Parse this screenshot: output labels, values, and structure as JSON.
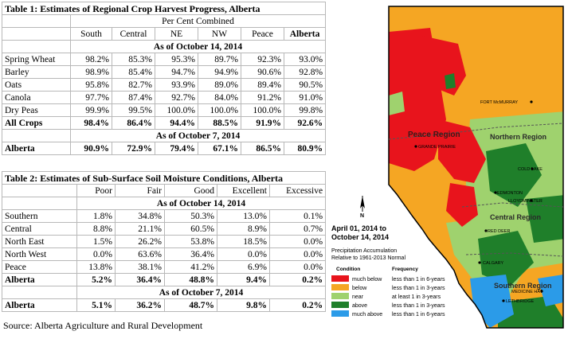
{
  "table1": {
    "title": "Table 1: Estimates of Regional Crop Harvest Progress, Alberta",
    "subtitle": "Per Cent Combined",
    "columns": [
      "South",
      "Central",
      "NE",
      "NW",
      "Peace",
      "Alberta"
    ],
    "section1": "As of October 14, 2014",
    "rows": [
      {
        "label": "Spring Wheat",
        "values": [
          "98.2%",
          "85.3%",
          "95.3%",
          "89.7%",
          "92.3%",
          "93.0%"
        ]
      },
      {
        "label": "Barley",
        "values": [
          "98.9%",
          "85.4%",
          "94.7%",
          "94.9%",
          "90.6%",
          "92.8%"
        ]
      },
      {
        "label": "Oats",
        "values": [
          "95.8%",
          "82.7%",
          "93.9%",
          "89.0%",
          "89.4%",
          "90.5%"
        ]
      },
      {
        "label": "Canola",
        "values": [
          "97.7%",
          "87.4%",
          "92.7%",
          "84.0%",
          "91.2%",
          "91.0%"
        ]
      },
      {
        "label": "Dry Peas",
        "values": [
          "99.9%",
          "99.5%",
          "100.0%",
          "100.0%",
          "100.0%",
          "99.8%"
        ]
      }
    ],
    "total": {
      "label": "All Crops",
      "values": [
        "98.4%",
        "86.4%",
        "94.4%",
        "88.5%",
        "91.9%",
        "92.6%"
      ]
    },
    "section2": "As of October 7, 2014",
    "prev": {
      "label": "Alberta",
      "values": [
        "90.9%",
        "72.9%",
        "79.4%",
        "67.1%",
        "86.5%",
        "80.9%"
      ]
    }
  },
  "table2": {
    "title": "Table 2: Estimates of Sub-Surface Soil Moisture Conditions, Alberta",
    "columns": [
      "Poor",
      "Fair",
      "Good",
      "Excellent",
      "Excessive"
    ],
    "section1": "As of October 14, 2014",
    "rows": [
      {
        "label": "Southern",
        "values": [
          "1.8%",
          "34.8%",
          "50.3%",
          "13.0%",
          "0.1%"
        ]
      },
      {
        "label": "Central",
        "values": [
          "8.8%",
          "21.1%",
          "60.5%",
          "8.9%",
          "0.7%"
        ]
      },
      {
        "label": "North East",
        "values": [
          "1.5%",
          "26.2%",
          "53.8%",
          "18.5%",
          "0.0%"
        ]
      },
      {
        "label": "North West",
        "values": [
          "0.0%",
          "63.6%",
          "36.4%",
          "0.0%",
          "0.0%"
        ]
      },
      {
        "label": "Peace",
        "values": [
          "13.8%",
          "38.1%",
          "41.2%",
          "6.9%",
          "0.0%"
        ]
      }
    ],
    "total": {
      "label": "Alberta",
      "values": [
        "5.2%",
        "36.4%",
        "48.8%",
        "9.4%",
        "0.2%"
      ]
    },
    "section2": "As of October 7, 2014",
    "prev": {
      "label": "Alberta",
      "values": [
        "5.1%",
        "36.2%",
        "48.7%",
        "9.8%",
        "0.2%"
      ]
    }
  },
  "source": "Source: Alberta Agriculture and Rural Development",
  "map": {
    "date_line1": "April 01, 2014 to",
    "date_line2": "October 14, 2014",
    "desc_line1": "Precipitation Accumulation",
    "desc_line2": "Relative to 1961-2013 Normal",
    "legend_header_condition": "Condition",
    "legend_header_frequency": "Frequency",
    "legend": [
      {
        "condition": "much below",
        "frequency": "less than 1 in 6-years",
        "color": "#e8141c"
      },
      {
        "condition": "below",
        "frequency": "less than 1 in 3-years",
        "color": "#f5a623"
      },
      {
        "condition": "near",
        "frequency": "at least 1 in 3-years",
        "color": "#9fd26e"
      },
      {
        "condition": "above",
        "frequency": "less than 1 in 3-years",
        "color": "#1f7f2a"
      },
      {
        "condition": "much above",
        "frequency": "less than 1 in 6-years",
        "color": "#2b9be8"
      }
    ],
    "regions": {
      "peace": "Peace Region",
      "northern": "Northern Region",
      "central": "Central Region",
      "southern": "Southern Region"
    },
    "cities": {
      "fort_mcmurray": "FORT McMURRAY",
      "grande_prairie": "GRANDE PRAIRIE",
      "cold_lake": "COLD LAKE",
      "edmonton": "EDMONTON",
      "lloydminster": "LLOYDMINSTER",
      "red_deer": "RED DEER",
      "calgary": "CALGARY",
      "medicine_hat": "MEDICINE HAT",
      "lethbridge": "LETHBRIDGE"
    },
    "north_arrow": "N"
  }
}
